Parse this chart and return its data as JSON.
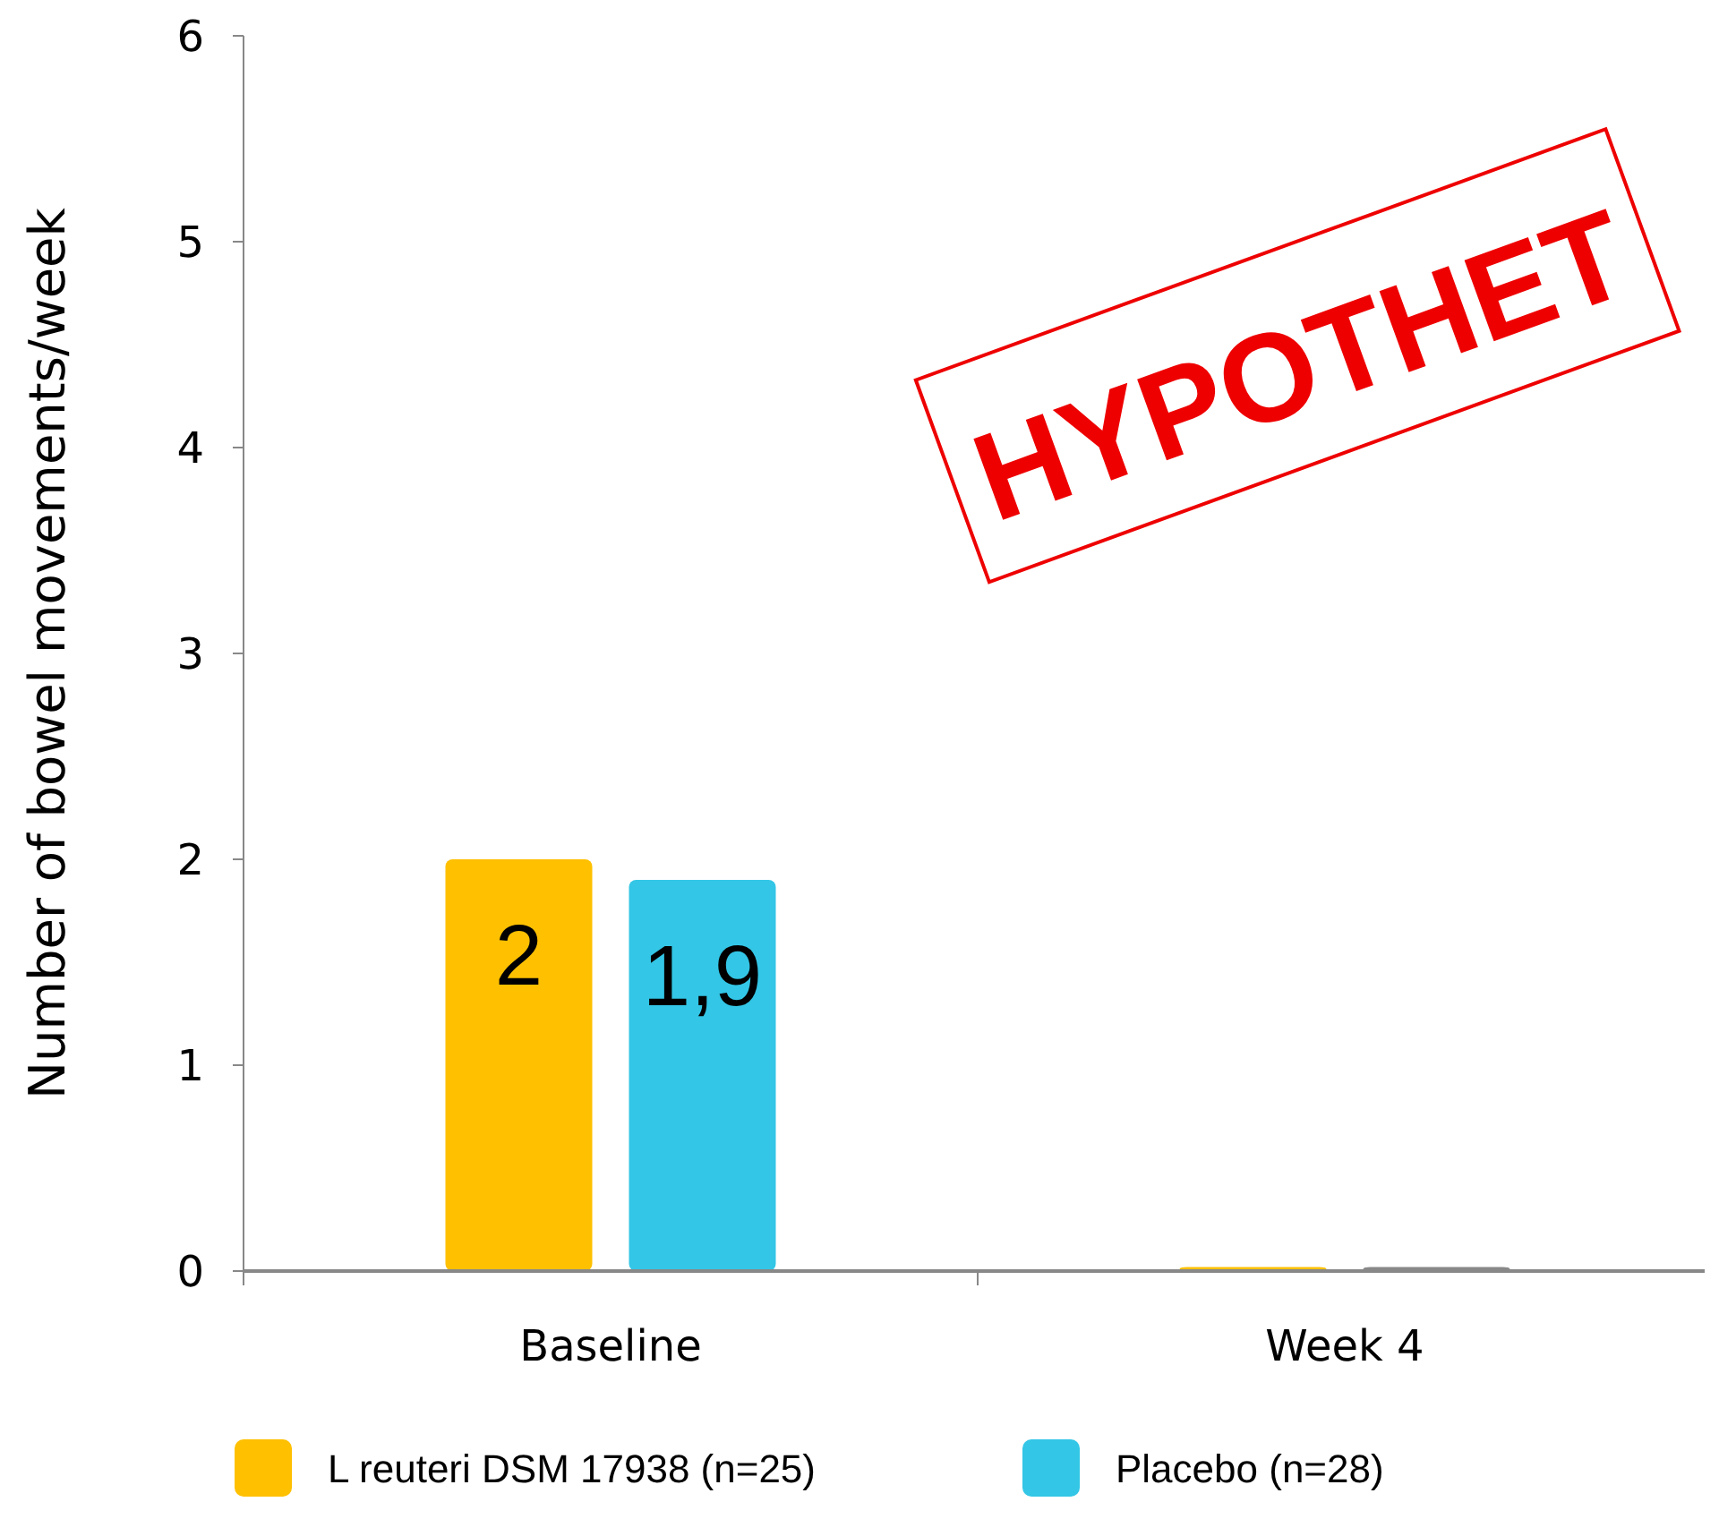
{
  "chart_data": {
    "type": "bar",
    "ylabel": "Number of bowel movements/week",
    "categories": [
      "Baseline",
      "Week 4"
    ],
    "series": [
      {
        "name": "L reuteri DSM 17938 (n=25)",
        "color": "#ffc000",
        "colors": [
          "#ffc000",
          "#ffc000"
        ],
        "values": [
          2,
          0.02
        ],
        "value_labels": [
          "2",
          null
        ]
      },
      {
        "name": "Placebo (n=28)",
        "color": "#33c6e6",
        "colors": [
          "#33c6e6",
          "#888888"
        ],
        "values": [
          1.9,
          0.02
        ],
        "value_labels": [
          "1,9",
          null
        ]
      }
    ],
    "ylim": [
      0,
      6
    ],
    "yticks": [
      0,
      1,
      2,
      3,
      4,
      5,
      6
    ],
    "grid": false,
    "legend": "bottom",
    "annotations": [
      "HYPOTHET"
    ]
  }
}
